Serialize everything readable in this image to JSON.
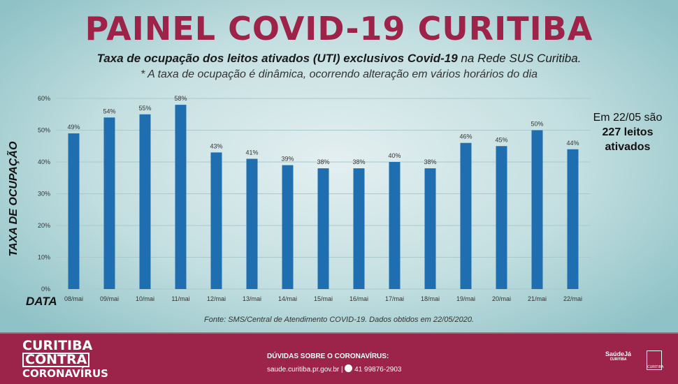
{
  "header": {
    "title": "PAINEL COVID-19 CURITIBA",
    "subtitle_bold": "Taxa de ocupação dos leitos ativados (UTI) exclusivos Covid-19",
    "subtitle_rest": " na Rede SUS Curitiba.",
    "note": "* A taxa de ocupação é dinâmica, ocorrendo alteração em vários horários do dia"
  },
  "side_note": {
    "line1": "Em 22/05 são",
    "line2": "227 leitos",
    "line3": "ativados"
  },
  "source": "Fonte: SMS/Central de Atendimento COVID-19. Dados obtidos em 22/05/2020.",
  "footer": {
    "brand1": "CURITIBA",
    "brand2": "CONTRA",
    "brand3": "CORONAVÍRUS",
    "contact_heading": "DÚVIDAS SOBRE O CORONAVÍRUS:",
    "site": "saude.curitiba.pr.gov.br |",
    "phone": "41 99876-2903",
    "logo1": "SaúdeJá",
    "logo1_sub": "CURITIBA",
    "logo2": "CURITIBA"
  },
  "colors": {
    "bar": "#1f6fb0",
    "title": "#9e2349",
    "footer": "#9c2349"
  },
  "chart_data": {
    "type": "bar",
    "title": "",
    "xlabel": "DATA",
    "ylabel": "TAXA DE OCUPAÇÃO",
    "ylim": [
      0,
      60
    ],
    "yticks": [
      "0%",
      "10%",
      "20%",
      "30%",
      "40%",
      "50%",
      "60%"
    ],
    "categories": [
      "08/mai",
      "09/mai",
      "10/mai",
      "11/mai",
      "12/mai",
      "13/mai",
      "14/mai",
      "15/mai",
      "16/mai",
      "17/mai",
      "18/mai",
      "19/mai",
      "20/mai",
      "21/mai",
      "22/mai"
    ],
    "values": [
      49,
      54,
      55,
      58,
      43,
      41,
      39,
      38,
      38,
      40,
      38,
      46,
      45,
      50,
      44
    ],
    "labels": [
      "49%",
      "54%",
      "55%",
      "58%",
      "43%",
      "41%",
      "39%",
      "38%",
      "38%",
      "40%",
      "38%",
      "46%",
      "45%",
      "50%",
      "44%"
    ],
    "grid": true
  }
}
